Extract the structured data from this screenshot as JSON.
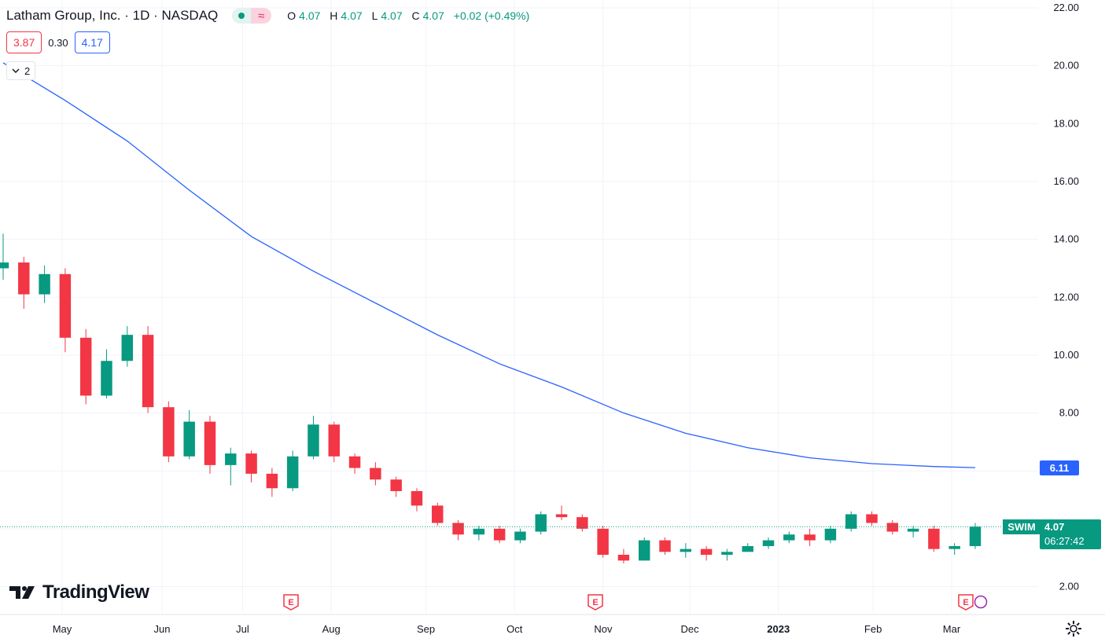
{
  "header": {
    "title": "Latham Group, Inc. · 1D · NASDAQ",
    "ohlc": {
      "o_label": "O",
      "o": "4.07",
      "h_label": "H",
      "h": "4.07",
      "l_label": "L",
      "l": "4.07",
      "c_label": "C",
      "c": "4.07",
      "change": "+0.02 (+0.49%)"
    }
  },
  "trade": {
    "sell": "3.87",
    "spread": "0.30",
    "buy": "4.17"
  },
  "indicators_toggle": {
    "count": "2"
  },
  "ma_label": "6.11",
  "last": {
    "symbol": "SWIM",
    "price": "4.07",
    "countdown": "06:27:42"
  },
  "logo": {
    "text": "TradingView"
  },
  "icons": [
    "chevron-down-icon",
    "settings-gear-icon",
    "earnings-icon",
    "dividend-icon",
    "tradingview-logo-icon"
  ],
  "colors": {
    "up": "#089981",
    "down": "#f23645",
    "ma": "#2962ff",
    "grid": "#f0f3fa"
  },
  "chart_data": {
    "type": "candlestick",
    "title": "Latham Group, Inc. · 1D · NASDAQ",
    "symbol": "SWIM",
    "y_ticks": [
      "22.00",
      "20.00",
      "18.00",
      "16.00",
      "14.00",
      "12.00",
      "10.00",
      "8.00",
      "2.00"
    ],
    "ylim": [
      1.0,
      22.2
    ],
    "x_ticks": [
      {
        "label": "May",
        "pos": 0.44
      },
      {
        "label": "Jun",
        "pos": 5.4
      },
      {
        "label": "Jul",
        "pos": 9.4
      },
      {
        "label": "Aug",
        "pos": 13.8
      },
      {
        "label": "Sep",
        "pos": 18.5
      },
      {
        "label": "Oct",
        "pos": 22.9
      },
      {
        "label": "Nov",
        "pos": 27.3
      },
      {
        "label": "Dec",
        "pos": 31.6
      },
      {
        "label": "2023",
        "pos": 36.0,
        "bold": true
      },
      {
        "label": "Feb",
        "pos": 40.7
      },
      {
        "label": "Mar",
        "pos": 44.6
      }
    ],
    "ohlc_weekly": [
      [
        13.0,
        14.2,
        12.6,
        13.2
      ],
      [
        13.2,
        13.4,
        11.6,
        12.1
      ],
      [
        12.1,
        13.1,
        11.8,
        12.8
      ],
      [
        12.8,
        13.0,
        10.1,
        10.6
      ],
      [
        10.6,
        10.9,
        8.3,
        8.6
      ],
      [
        8.6,
        10.2,
        8.5,
        9.8
      ],
      [
        9.8,
        11.0,
        9.6,
        10.7
      ],
      [
        10.7,
        11.0,
        8.0,
        8.2
      ],
      [
        8.2,
        8.4,
        6.3,
        6.5
      ],
      [
        6.5,
        8.1,
        6.4,
        7.7
      ],
      [
        7.7,
        7.9,
        5.9,
        6.2
      ],
      [
        6.2,
        6.8,
        5.5,
        6.6
      ],
      [
        6.6,
        6.7,
        5.6,
        5.9
      ],
      [
        5.9,
        6.1,
        5.1,
        5.4
      ],
      [
        5.4,
        6.7,
        5.3,
        6.5
      ],
      [
        6.5,
        7.9,
        6.4,
        7.6
      ],
      [
        7.6,
        7.7,
        6.3,
        6.5
      ],
      [
        6.5,
        6.6,
        5.9,
        6.1
      ],
      [
        6.1,
        6.3,
        5.5,
        5.7
      ],
      [
        5.7,
        5.8,
        5.1,
        5.3
      ],
      [
        5.3,
        5.4,
        4.6,
        4.8
      ],
      [
        4.8,
        4.9,
        4.1,
        4.2
      ],
      [
        4.2,
        4.3,
        3.6,
        3.8
      ],
      [
        3.8,
        4.1,
        3.6,
        4.0
      ],
      [
        4.0,
        4.1,
        3.5,
        3.6
      ],
      [
        3.6,
        4.0,
        3.5,
        3.9
      ],
      [
        3.9,
        4.6,
        3.8,
        4.5
      ],
      [
        4.5,
        4.8,
        4.3,
        4.4
      ],
      [
        4.4,
        4.5,
        3.9,
        4.0
      ],
      [
        4.0,
        4.1,
        3.0,
        3.1
      ],
      [
        3.1,
        3.3,
        2.8,
        2.9
      ],
      [
        2.9,
        3.7,
        2.9,
        3.6
      ],
      [
        3.6,
        3.7,
        3.1,
        3.2
      ],
      [
        3.2,
        3.5,
        3.0,
        3.3
      ],
      [
        3.3,
        3.4,
        2.9,
        3.1
      ],
      [
        3.1,
        3.3,
        2.9,
        3.2
      ],
      [
        3.2,
        3.5,
        3.2,
        3.4
      ],
      [
        3.4,
        3.7,
        3.3,
        3.6
      ],
      [
        3.6,
        3.9,
        3.5,
        3.8
      ],
      [
        3.8,
        4.0,
        3.4,
        3.6
      ],
      [
        3.6,
        4.1,
        3.5,
        4.0
      ],
      [
        4.0,
        4.6,
        3.9,
        4.5
      ],
      [
        4.5,
        4.6,
        4.1,
        4.2
      ],
      [
        4.2,
        4.3,
        3.8,
        3.9
      ],
      [
        3.9,
        4.1,
        3.7,
        4.0
      ],
      [
        4.0,
        4.1,
        3.2,
        3.3
      ],
      [
        3.3,
        3.5,
        3.1,
        3.4
      ],
      [
        3.4,
        4.2,
        3.3,
        4.07
      ]
    ],
    "moving_average": {
      "value": 6.11,
      "points": [
        [
          0,
          20.1
        ],
        [
          3,
          18.8
        ],
        [
          6,
          17.4
        ],
        [
          9,
          15.7
        ],
        [
          12,
          14.1
        ],
        [
          15,
          12.9
        ],
        [
          18,
          11.8
        ],
        [
          21,
          10.7
        ],
        [
          24,
          9.7
        ],
        [
          27,
          8.9
        ],
        [
          30,
          8.0
        ],
        [
          33,
          7.3
        ],
        [
          36,
          6.8
        ],
        [
          39,
          6.45
        ],
        [
          42,
          6.25
        ],
        [
          45,
          6.15
        ],
        [
          47,
          6.11
        ]
      ]
    },
    "last_price": 4.07,
    "earnings_markers": [
      11.8,
      26.9,
      45.3
    ]
  }
}
